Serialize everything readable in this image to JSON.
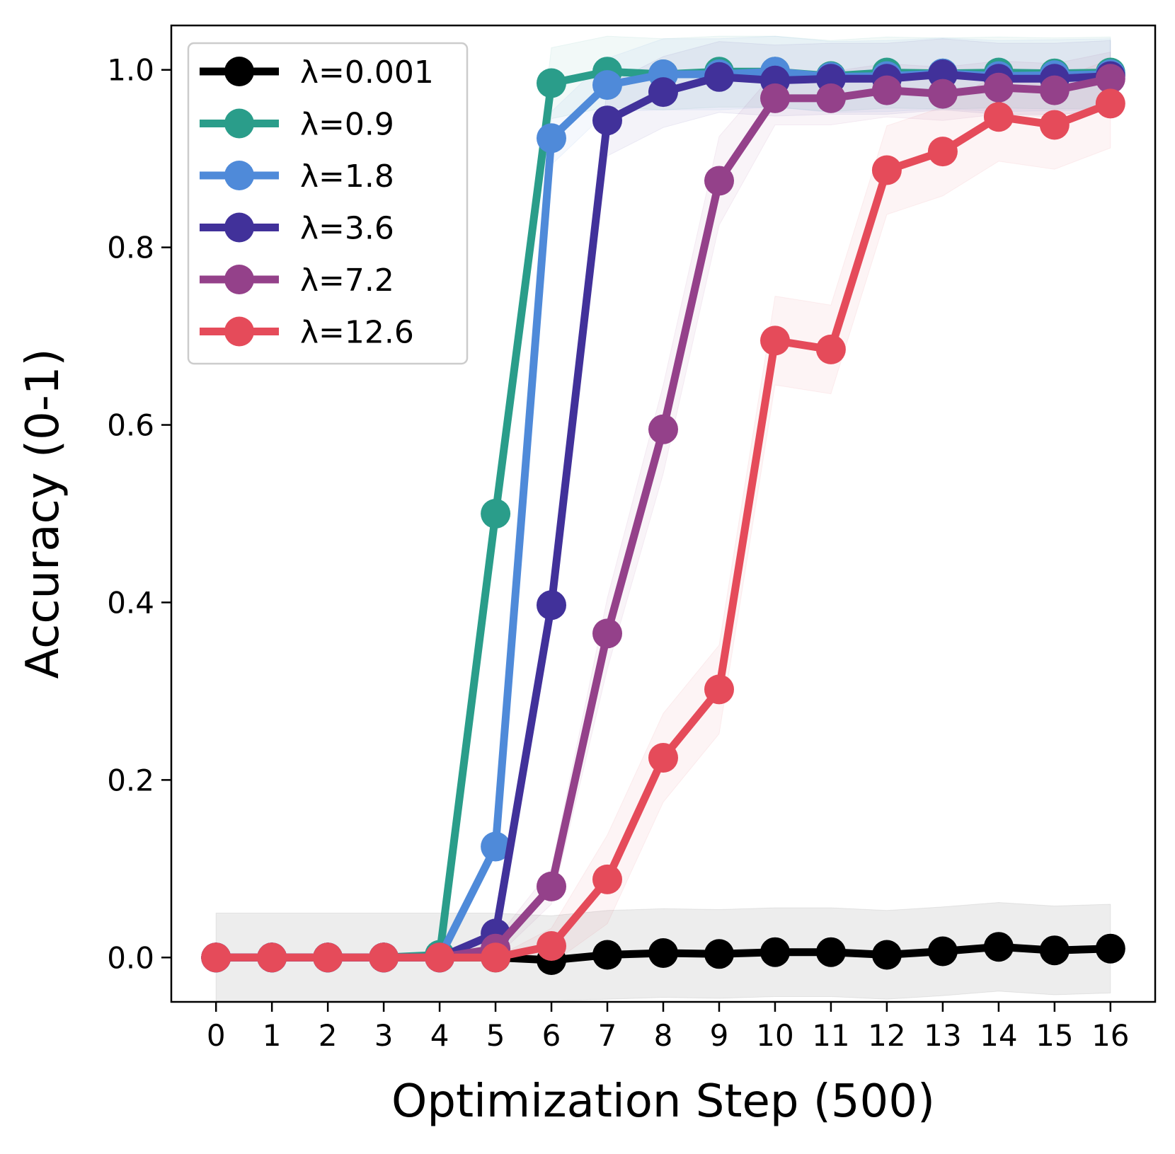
{
  "chart_data": {
    "type": "line",
    "title": "",
    "xlabel": "Optimization Step (500)",
    "ylabel": "Accuracy (0-1)",
    "xlim": [
      -0.8,
      16.8
    ],
    "ylim": [
      -0.05,
      1.05
    ],
    "x": [
      0,
      1,
      2,
      3,
      4,
      5,
      6,
      7,
      8,
      9,
      10,
      11,
      12,
      13,
      14,
      15,
      16
    ],
    "xticks": [
      "0",
      "1",
      "2",
      "3",
      "4",
      "5",
      "6",
      "7",
      "8",
      "9",
      "10",
      "11",
      "12",
      "13",
      "14",
      "15",
      "16"
    ],
    "yticks": [
      0.0,
      0.2,
      0.4,
      0.6,
      0.8,
      1.0
    ],
    "ytick_labels": [
      "0.0",
      "0.2",
      "0.4",
      "0.6",
      "0.8",
      "1.0"
    ],
    "legend_position": "top-left",
    "series": [
      {
        "name": "λ=0.001",
        "color": "#000000",
        "values": [
          0.0,
          0.0,
          0.0,
          0.0,
          0.0,
          0.0,
          -0.003,
          0.003,
          0.005,
          0.004,
          0.006,
          0.006,
          0.003,
          0.007,
          0.012,
          0.008,
          0.01
        ],
        "band": [
          0.05,
          0.05,
          0.05,
          0.05,
          0.05,
          0.05,
          0.05,
          0.05,
          0.05,
          0.05,
          0.05,
          0.05,
          0.05,
          0.05,
          0.05,
          0.05,
          0.05
        ]
      },
      {
        "name": "λ=0.9",
        "color": "#2a9d8a",
        "values": [
          0.0,
          0.0,
          0.0,
          0.0,
          0.003,
          0.5,
          0.985,
          0.998,
          0.995,
          0.998,
          0.998,
          0.993,
          0.997,
          0.996,
          0.997,
          0.996,
          0.997
        ],
        "band": [
          0.0,
          0.0,
          0.0,
          0.0,
          0.0,
          0.0,
          0.04,
          0.04,
          0.04,
          0.04,
          0.04,
          0.04,
          0.04,
          0.04,
          0.04,
          0.04,
          0.04
        ]
      },
      {
        "name": "λ=1.8",
        "color": "#4f8ad9",
        "values": [
          0.0,
          0.0,
          0.0,
          0.0,
          0.0,
          0.125,
          0.923,
          0.983,
          0.995,
          0.995,
          0.998,
          0.992,
          0.993,
          0.996,
          0.993,
          0.994,
          0.995
        ],
        "band": [
          0.0,
          0.0,
          0.0,
          0.0,
          0.0,
          0.0,
          0.03,
          0.03,
          0.04,
          0.04,
          0.04,
          0.04,
          0.04,
          0.04,
          0.04,
          0.04,
          0.04
        ]
      },
      {
        "name": "λ=3.6",
        "color": "#41319a",
        "values": [
          0.0,
          0.0,
          0.0,
          0.0,
          0.0,
          0.027,
          0.397,
          0.943,
          0.975,
          0.992,
          0.988,
          0.99,
          0.99,
          0.995,
          0.99,
          0.99,
          0.993
        ],
        "band": [
          0.0,
          0.0,
          0.0,
          0.0,
          0.0,
          0.0,
          0.0,
          0.04,
          0.04,
          0.04,
          0.04,
          0.04,
          0.04,
          0.04,
          0.04,
          0.04,
          0.04
        ]
      },
      {
        "name": "λ=7.2",
        "color": "#94418a",
        "values": [
          0.0,
          0.0,
          0.0,
          0.0,
          0.0,
          0.01,
          0.08,
          0.365,
          0.595,
          0.875,
          0.968,
          0.968,
          0.977,
          0.973,
          0.98,
          0.977,
          0.99
        ],
        "band": [
          0.0,
          0.0,
          0.0,
          0.0,
          0.0,
          0.01,
          0.02,
          0.04,
          0.05,
          0.05,
          0.03,
          0.03,
          0.03,
          0.03,
          0.03,
          0.03,
          0.03
        ]
      },
      {
        "name": "λ=12.6",
        "color": "#e54b5a",
        "values": [
          0.0,
          0.0,
          0.0,
          0.0,
          0.0,
          0.0,
          0.013,
          0.088,
          0.225,
          0.302,
          0.695,
          0.685,
          0.887,
          0.908,
          0.947,
          0.938,
          0.962
        ],
        "band": [
          0.0,
          0.0,
          0.0,
          0.0,
          0.0,
          0.0,
          0.02,
          0.05,
          0.05,
          0.05,
          0.05,
          0.05,
          0.05,
          0.05,
          0.05,
          0.05,
          0.05
        ]
      }
    ]
  }
}
